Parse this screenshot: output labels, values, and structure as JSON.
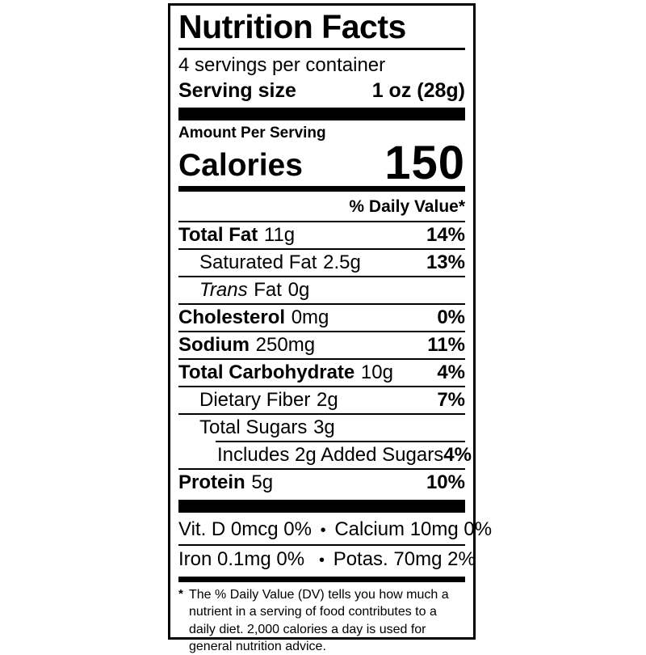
{
  "label": {
    "title": "Nutrition Facts",
    "servings_per_container": "4 servings per container",
    "serving_size": {
      "label": "Serving size",
      "value": "1 oz (28g)"
    },
    "amount_per_serving": "Amount Per Serving",
    "calories": {
      "label": "Calories",
      "value": "150"
    },
    "daily_value_header": "% Daily Value*",
    "nutrients": [
      {
        "name": "Total Fat",
        "amount": "11g",
        "dv": "14%"
      },
      {
        "name": "Saturated Fat",
        "amount": "2.5g",
        "dv": "13%"
      },
      {
        "name_italic": "Trans",
        "name_rest": "Fat",
        "amount": "0g",
        "dv": ""
      },
      {
        "name": "Cholesterol",
        "amount": "0mg",
        "dv": "0%"
      },
      {
        "name": "Sodium",
        "amount": "250mg",
        "dv": "11%"
      },
      {
        "name": "Total Carbohydrate",
        "amount": "10g",
        "dv": "4%"
      },
      {
        "name": "Dietary Fiber",
        "amount": "2g",
        "dv": "7%"
      },
      {
        "name": "Total Sugars",
        "amount": "3g",
        "dv": ""
      },
      {
        "name": "Includes 2g Added Sugars",
        "amount": "",
        "dv": "4%"
      },
      {
        "name": "Protein",
        "amount": "5g",
        "dv": "10%"
      }
    ],
    "micronutrients": {
      "bullet": "•",
      "rows": [
        {
          "left": "Vit. D 0mcg 0%",
          "right": "Calcium 10mg 0%"
        },
        {
          "left": "Iron 0.1mg 0%",
          "right": "Potas. 70mg 2%"
        }
      ]
    },
    "footnote": {
      "marker": "*",
      "text": "The % Daily Value (DV) tells you how much a nutrient in a serving of food contributes to a daily diet. 2,000 calories a day is used for general nutrition advice."
    },
    "colors": {
      "ink": "#000000",
      "background": "#ffffff"
    }
  }
}
